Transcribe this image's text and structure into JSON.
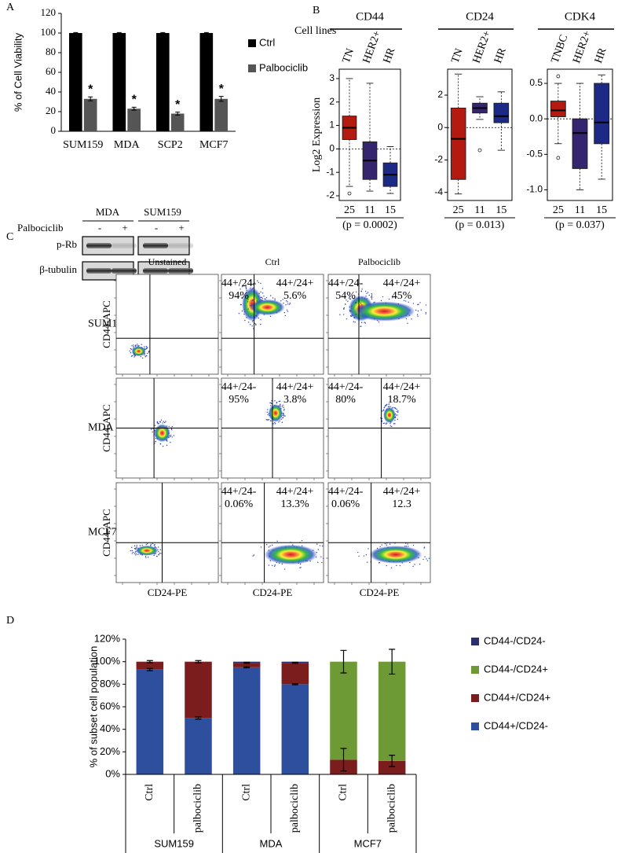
{
  "panel_labels": [
    "A",
    "B",
    "C",
    "D"
  ],
  "chart_data": [
    {
      "type": "bar",
      "ylabel": "% of Cell Viability",
      "categories": [
        "SUM159",
        "MDA",
        "SCP2",
        "MCF7"
      ],
      "series": [
        {
          "name": "Ctrl",
          "color": "#000000",
          "values": [
            100,
            100,
            100,
            100
          ],
          "errors": [
            0.5,
            0.5,
            0.5,
            0.5
          ]
        },
        {
          "name": "Palbociclib",
          "color": "#555555",
          "values": [
            33,
            23,
            18,
            33
          ],
          "errors": [
            2,
            1.5,
            1.5,
            2.5
          ],
          "annotations": [
            "*",
            "*",
            "*",
            "*"
          ]
        }
      ],
      "ylim": [
        0,
        120
      ],
      "yticks": [
        0,
        20,
        40,
        60,
        80,
        100,
        120
      ]
    },
    {
      "type": "box",
      "title": "CD44",
      "row_label": "Cell lines",
      "ylabel": "Log2 Expression",
      "categories": [
        "TN",
        "HER2+",
        "HR"
      ],
      "counts": [
        25,
        11,
        15
      ],
      "annotation": "(p = 0.0002)",
      "colors": [
        "#b51a10",
        "#35246e",
        "#1c2a86"
      ],
      "boxes": [
        {
          "min": -1.6,
          "q1": 0.4,
          "median": 0.9,
          "q3": 1.4,
          "max": 3.0,
          "outliers": [
            -1.9
          ]
        },
        {
          "min": -1.8,
          "q1": -1.3,
          "median": -0.5,
          "q3": 0.3,
          "max": 2.8,
          "outliers": []
        },
        {
          "min": -1.9,
          "q1": -1.6,
          "median": -1.1,
          "q3": -0.6,
          "max": 0.1,
          "outliers": []
        }
      ],
      "ylim": [
        -2.2,
        3.4
      ],
      "yticks": [
        -2,
        -1,
        0,
        1,
        2,
        3
      ],
      "refline": 0
    },
    {
      "type": "box",
      "title": "CD24",
      "categories": [
        "TN",
        "HER2+",
        "HR"
      ],
      "counts": [
        25,
        11,
        15
      ],
      "annotation": "(p = 0.013)",
      "colors": [
        "#b51a10",
        "#35246e",
        "#1c2a86"
      ],
      "boxes": [
        {
          "min": -4.1,
          "q1": -3.2,
          "median": -0.7,
          "q3": 1.2,
          "max": 3.3,
          "outliers": []
        },
        {
          "min": 0.5,
          "q1": 0.9,
          "median": 1.2,
          "q3": 1.5,
          "max": 1.9,
          "outliers": [
            -1.4
          ]
        },
        {
          "min": -1.4,
          "q1": 0.3,
          "median": 0.7,
          "q3": 1.5,
          "max": 2.2,
          "outliers": []
        }
      ],
      "ylim": [
        -4.5,
        3.6
      ],
      "yticks": [
        -4,
        -2,
        0,
        2
      ],
      "refline": 0
    },
    {
      "type": "box",
      "title": "CDK4",
      "categories": [
        "TNBC",
        "HER2+",
        "HR"
      ],
      "counts": [
        25,
        11,
        15
      ],
      "annotation": "(p = 0.037)",
      "colors": [
        "#b51a10",
        "#35246e",
        "#1c2a86"
      ],
      "boxes": [
        {
          "min": -0.35,
          "q1": 0.03,
          "median": 0.12,
          "q3": 0.25,
          "max": 0.5,
          "outliers": [
            0.6,
            -0.55
          ]
        },
        {
          "min": -1.0,
          "q1": -0.7,
          "median": -0.2,
          "q3": 0.0,
          "max": 0.5,
          "outliers": []
        },
        {
          "min": -0.85,
          "q1": -0.35,
          "median": -0.05,
          "q3": 0.5,
          "max": 0.62,
          "outliers": []
        }
      ],
      "ylim": [
        -1.15,
        0.7
      ],
      "yticks": [
        {
          "value": -1,
          "label": "-1.0"
        },
        -0.5,
        {
          "value": 0,
          "label": "0.0"
        },
        0.5
      ],
      "refline": 0
    },
    {
      "type": "stacked_bar",
      "ylabel": "% of subset cell population",
      "categories": [
        "Ctrl",
        "palbociclib",
        "Ctrl",
        "palbociclib",
        "Ctrl",
        "palbociclib"
      ],
      "groups": [
        "SUM159",
        "MDA",
        "MCF7"
      ],
      "series": [
        {
          "name": "CD44+/CD24-",
          "color": "#2e4f9e",
          "values": [
            93,
            50,
            95,
            80,
            0,
            0
          ],
          "errors": [
            1,
            1,
            0.5,
            0.5,
            null,
            null
          ]
        },
        {
          "name": "CD44+/CD24+",
          "color": "#7b1d1d",
          "values": [
            7,
            50,
            4,
            19,
            13,
            12
          ],
          "errors": [
            1,
            1,
            0.5,
            0.5,
            10,
            5
          ]
        },
        {
          "name": "CD44-/CD24+",
          "color": "#6e9a35",
          "values": [
            0,
            0,
            0,
            0,
            87,
            88
          ],
          "errors": [
            null,
            null,
            null,
            null,
            10,
            11
          ]
        },
        {
          "name": "CD44-/CD24-",
          "color": "#2a2f6b",
          "values": [
            0,
            0,
            1,
            1,
            0,
            0
          ]
        }
      ],
      "ylim": [
        0,
        120
      ],
      "yticks": [
        {
          "value": 0,
          "label": "0%"
        },
        {
          "value": 20,
          "label": "20%"
        },
        {
          "value": 40,
          "label": "40%"
        },
        {
          "value": 60,
          "label": "60%"
        },
        {
          "value": 80,
          "label": "80%"
        },
        {
          "value": 100,
          "label": "100%"
        },
        {
          "value": 120,
          "label": "120%"
        }
      ]
    }
  ],
  "blot": {
    "treatment": "Palbociclib",
    "groups": [
      "MDA",
      "SUM159"
    ],
    "lanes": [
      "-",
      "+",
      "-",
      "+"
    ],
    "rows": [
      "p-Rb",
      "β-tubulin"
    ]
  },
  "flow": {
    "columns": [
      "Unstained",
      "Ctrl",
      "Palbociclib"
    ],
    "xlabel": "CD24-PE",
    "ylabel": "CD44-APC",
    "rows": [
      {
        "name": "SUM159",
        "stained": [
          {
            "left": [
              "44+/24-",
              "94%"
            ],
            "right": [
              "44+/24+",
              "5.6%"
            ]
          },
          {
            "left": [
              "44+/24-",
              "54%"
            ],
            "right": [
              "44+/24+",
              "45%"
            ]
          }
        ]
      },
      {
        "name": "MDA",
        "stained": [
          {
            "left": [
              "44+/24-",
              "95%"
            ],
            "right": [
              "44+/24+",
              "3.8%"
            ]
          },
          {
            "left": [
              "44+/24-",
              "80%"
            ],
            "right": [
              "44+/24+",
              "18.7%"
            ]
          }
        ]
      },
      {
        "name": "MCF7",
        "stained": [
          {
            "left": [
              "44+/24-",
              "0.06%"
            ],
            "right": [
              "44+/24+",
              "13.3%"
            ]
          },
          {
            "left": [
              "44+/24-",
              "0.06%"
            ],
            "right": [
              "44+/24+",
              "12.3"
            ]
          }
        ]
      }
    ]
  }
}
